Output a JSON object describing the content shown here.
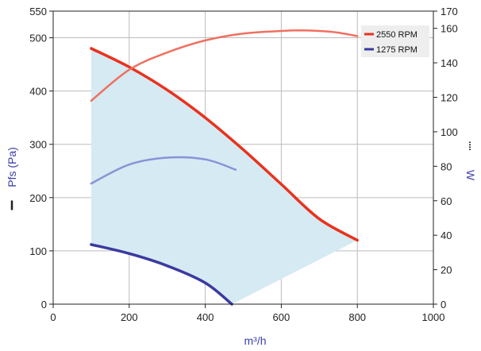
{
  "chart_data": {
    "type": "line",
    "x_axis": {
      "label": "m³/h",
      "ticks": [
        0,
        200,
        400,
        600,
        800,
        1000
      ],
      "range": [
        0,
        1000
      ]
    },
    "y_axis_left": {
      "label": "Pfs (Pa)",
      "ticks": [
        0,
        100,
        200,
        300,
        400,
        500,
        550
      ],
      "range": [
        0,
        550
      ]
    },
    "y_axis_right": {
      "label": "W",
      "ticks": [
        0,
        20,
        40,
        60,
        80,
        100,
        120,
        140,
        160,
        170
      ],
      "range": [
        0,
        170
      ]
    },
    "grid": true,
    "legend_position": "top-right",
    "legend": [
      {
        "label": "2550 RPM",
        "color": "#e8321e"
      },
      {
        "label": "1275 RPM",
        "color": "#3a3aa0"
      }
    ],
    "operating_area_color": "#d5eaf2",
    "series": [
      {
        "name": "2550 RPM",
        "kind": "pressure",
        "axis": "left",
        "color": "#e8321e",
        "points": [
          [
            100,
            480
          ],
          [
            200,
            445
          ],
          [
            300,
            402
          ],
          [
            400,
            350
          ],
          [
            500,
            290
          ],
          [
            600,
            225
          ],
          [
            700,
            160
          ],
          [
            800,
            120
          ]
        ]
      },
      {
        "name": "1275 RPM",
        "kind": "pressure",
        "axis": "left",
        "color": "#3a3aa0",
        "points": [
          [
            100,
            112
          ],
          [
            200,
            95
          ],
          [
            300,
            72
          ],
          [
            400,
            40
          ],
          [
            470,
            0
          ]
        ]
      },
      {
        "name": "2550 RPM",
        "kind": "power",
        "axis": "right",
        "color": "#f07060",
        "points": [
          [
            100,
            118
          ],
          [
            200,
            136
          ],
          [
            300,
            146
          ],
          [
            400,
            153
          ],
          [
            500,
            157
          ],
          [
            600,
            158.5
          ],
          [
            650,
            158.8
          ],
          [
            700,
            158.5
          ],
          [
            750,
            157.5
          ],
          [
            800,
            155.5
          ]
        ]
      },
      {
        "name": "1275 RPM",
        "kind": "power",
        "axis": "right",
        "color": "#8a92d8",
        "points": [
          [
            100,
            70
          ],
          [
            200,
            81
          ],
          [
            300,
            85
          ],
          [
            400,
            84
          ],
          [
            480,
            78
          ]
        ]
      }
    ],
    "operating_area": {
      "upper_boundary": [
        [
          100,
          480
        ],
        [
          200,
          445
        ],
        [
          300,
          402
        ],
        [
          400,
          350
        ],
        [
          500,
          290
        ],
        [
          600,
          225
        ],
        [
          700,
          160
        ],
        [
          800,
          120
        ]
      ],
      "lower_boundary": [
        [
          800,
          120
        ],
        [
          470,
          0
        ],
        [
          400,
          40
        ],
        [
          300,
          72
        ],
        [
          200,
          95
        ],
        [
          100,
          112
        ]
      ]
    }
  }
}
